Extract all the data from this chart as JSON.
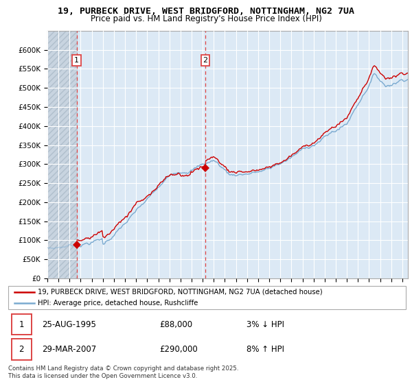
{
  "title_line1": "19, PURBECK DRIVE, WEST BRIDGFORD, NOTTINGHAM, NG2 7UA",
  "title_line2": "Price paid vs. HM Land Registry's House Price Index (HPI)",
  "ylim": [
    0,
    650000
  ],
  "yticks": [
    0,
    50000,
    100000,
    150000,
    200000,
    250000,
    300000,
    350000,
    400000,
    450000,
    500000,
    550000,
    600000
  ],
  "ytick_labels": [
    "£0",
    "£50K",
    "£100K",
    "£150K",
    "£200K",
    "£250K",
    "£300K",
    "£350K",
    "£400K",
    "£450K",
    "£500K",
    "£550K",
    "£600K"
  ],
  "xlim_start": 1993.0,
  "xlim_end": 2025.5,
  "transaction1_date": 1995.647,
  "transaction1_price": 88000,
  "transaction2_date": 2007.24,
  "transaction2_price": 290000,
  "hpi_line_color": "#7aaad0",
  "price_line_color": "#cc0000",
  "transaction_marker_color": "#cc0000",
  "vline_color": "#dd4444",
  "background_color": "#dce9f5",
  "hatch_region_color": "#c8d4e0",
  "grid_color": "#ffffff",
  "legend_label_price": "19, PURBECK DRIVE, WEST BRIDGFORD, NOTTINGHAM, NG2 7UA (detached house)",
  "legend_label_hpi": "HPI: Average price, detached house, Rushcliffe",
  "footnote": "Contains HM Land Registry data © Crown copyright and database right 2025.\nThis data is licensed under the Open Government Licence v3.0.",
  "table_row1": [
    "1",
    "25-AUG-1995",
    "£88,000",
    "3% ↓ HPI"
  ],
  "table_row2": [
    "2",
    "29-MAR-2007",
    "£290,000",
    "8% ↑ HPI"
  ]
}
